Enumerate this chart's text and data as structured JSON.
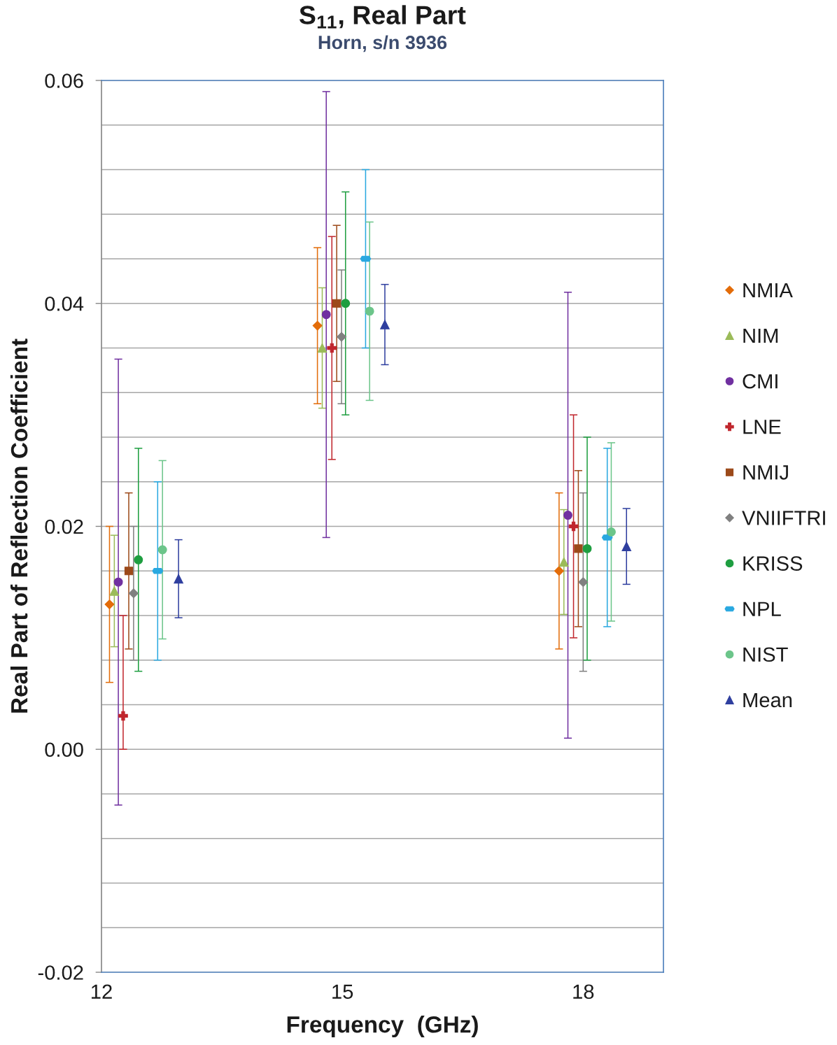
{
  "chart_data": {
    "type": "scatter",
    "title": "S$_{11}$, Real Part",
    "subtitle": "Horn, s/n 3936",
    "xlabel": "Frequency  (GHz)",
    "ylabel": "Real Part of Reflection Coefficient",
    "xlim": [
      12,
      19
    ],
    "xticks": [
      12,
      15,
      18
    ],
    "ylim": [
      -0.02,
      0.06
    ],
    "yticks": [
      {
        "value": -0.02,
        "label": "-0.02"
      },
      {
        "value": -0.016,
        "label": null
      },
      {
        "value": -0.012,
        "label": null
      },
      {
        "value": -0.008,
        "label": null
      },
      {
        "value": -0.004,
        "label": null
      },
      {
        "value": 0.0,
        "label": "0.00"
      },
      {
        "value": 0.004,
        "label": null
      },
      {
        "value": 0.008,
        "label": null
      },
      {
        "value": 0.012,
        "label": null
      },
      {
        "value": 0.016,
        "label": null
      },
      {
        "value": 0.02,
        "label": "0.02"
      },
      {
        "value": 0.024,
        "label": null
      },
      {
        "value": 0.028,
        "label": null
      },
      {
        "value": 0.032,
        "label": null
      },
      {
        "value": 0.036,
        "label": null
      },
      {
        "value": 0.04,
        "label": "0.04"
      },
      {
        "value": 0.044,
        "label": null
      },
      {
        "value": 0.048,
        "label": null
      },
      {
        "value": 0.052,
        "label": null
      },
      {
        "value": 0.056,
        "label": null
      },
      {
        "value": 0.06,
        "label": "0.06"
      }
    ],
    "grid": "y",
    "legend": "right",
    "series": [
      {
        "name": "NMIA",
        "color": "#e36c09",
        "marker": "diamond",
        "x": [
          12.1,
          14.69,
          17.7
        ],
        "values": [
          0.013,
          0.038,
          0.016
        ],
        "errors": [
          0.007,
          0.007,
          0.007
        ]
      },
      {
        "name": "NIM",
        "color": "#9bbb59",
        "marker": "triangle",
        "x": [
          12.16,
          14.75,
          17.76
        ],
        "values": [
          0.0142,
          0.036,
          0.0168
        ],
        "errors": [
          0.005,
          0.0054,
          0.0047
        ]
      },
      {
        "name": "CMI",
        "color": "#7030a0",
        "marker": "circle",
        "x": [
          12.21,
          14.8,
          17.81
        ],
        "values": [
          0.015,
          0.039,
          0.021
        ],
        "errors": [
          0.02,
          0.02,
          0.02
        ]
      },
      {
        "name": "LNE",
        "color": "#c0262d",
        "marker": "cross",
        "x": [
          12.27,
          14.87,
          17.88
        ],
        "values": [
          0.003,
          0.036,
          0.02
        ],
        "errors": [
          [
            0.0,
            0.012
          ],
          0.01,
          0.01
        ]
      },
      {
        "name": "NMIJ",
        "color": "#9c4a1a",
        "marker": "square",
        "x": [
          12.34,
          14.93,
          17.94
        ],
        "values": [
          0.016,
          0.04,
          0.018
        ],
        "errors": [
          0.007,
          0.007,
          0.007
        ]
      },
      {
        "name": "VNIIFTRI",
        "color": "#808080",
        "marker": "diamond",
        "x": [
          12.4,
          14.99,
          18.0
        ],
        "values": [
          0.014,
          0.037,
          0.015
        ],
        "errors": [
          0.006,
          0.006,
          0.008
        ]
      },
      {
        "name": "KRISS",
        "color": "#1e9e40",
        "marker": "circle",
        "x": [
          12.46,
          15.04,
          18.05
        ],
        "values": [
          0.017,
          0.04,
          0.018
        ],
        "errors": [
          0.01,
          0.01,
          0.01
        ]
      },
      {
        "name": "NPL",
        "color": "#29a8e0",
        "x": [
          12.7,
          15.29,
          18.3
        ],
        "values": [
          0.016,
          0.044,
          0.019
        ],
        "errors": [
          0.008,
          0.008,
          0.008
        ]
      },
      {
        "name": "NIST",
        "color": "#6cc58a",
        "marker": "circle",
        "x": [
          12.76,
          15.34,
          18.35
        ],
        "values": [
          0.0179,
          0.0393,
          0.0195
        ],
        "errors": [
          0.008,
          0.008,
          0.008
        ]
      },
      {
        "name": "Mean",
        "color": "#2f3f9f",
        "marker": "triangle",
        "x": [
          12.96,
          15.53,
          18.54
        ],
        "values": [
          0.0153,
          0.0381,
          0.0182
        ],
        "errors": [
          0.0035,
          0.0036,
          0.0034
        ]
      }
    ]
  }
}
